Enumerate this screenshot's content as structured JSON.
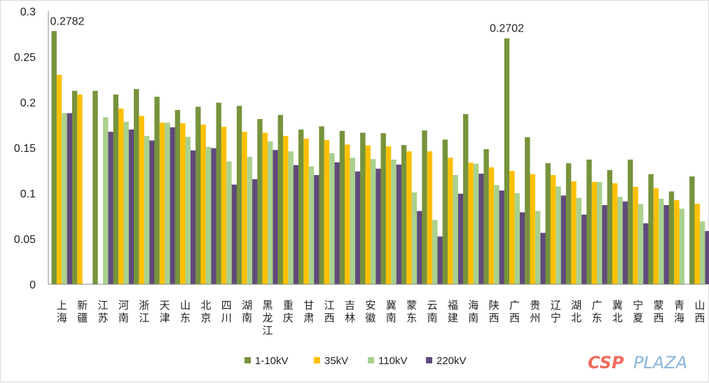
{
  "chart_data": {
    "type": "bar",
    "categories": [
      "上海",
      "新疆",
      "江苏",
      "河南",
      "浙江",
      "天津",
      "山东",
      "北京",
      "四川",
      "湖南",
      "黑龙江",
      "重庆",
      "甘肃",
      "江西",
      "吉林",
      "安徽",
      "冀南",
      "蒙东",
      "云南",
      "福建",
      "海南",
      "陕西",
      "广西",
      "贵州",
      "辽宁",
      "湖北",
      "广东",
      "冀北",
      "宁夏",
      "蒙西",
      "青海",
      "山西"
    ],
    "series": [
      {
        "name": "1-10kV",
        "color": "#77933c",
        "values": [
          0.2782,
          0.2125,
          0.2125,
          0.2085,
          0.2145,
          0.206,
          0.1915,
          0.195,
          0.1995,
          0.196,
          0.1815,
          0.186,
          0.17,
          0.1735,
          0.1685,
          0.1665,
          0.166,
          0.153,
          0.169,
          0.159,
          0.187,
          0.1485,
          0.2702,
          0.1615,
          0.133,
          0.133,
          0.137,
          0.1255,
          0.137,
          0.121,
          0.102,
          0.1185
        ]
      },
      {
        "name": "35kV",
        "color": "#ffc000",
        "values": [
          0.23,
          0.2085,
          null,
          0.193,
          0.185,
          0.1775,
          0.177,
          0.1755,
          0.173,
          0.1675,
          0.1665,
          0.163,
          0.16,
          0.1585,
          0.1535,
          0.1525,
          0.1515,
          0.146,
          0.146,
          0.139,
          0.1335,
          0.1285,
          0.1245,
          0.121,
          0.12,
          0.113,
          0.1125,
          0.111,
          0.107,
          0.1055,
          0.0925,
          0.0885
        ]
      },
      {
        "name": "110kV",
        "color": "#a9d18e",
        "values": [
          0.188,
          null,
          0.1835,
          0.1785,
          0.163,
          0.1775,
          0.162,
          0.151,
          0.135,
          0.14,
          0.157,
          0.146,
          0.1295,
          0.144,
          0.139,
          0.1375,
          0.137,
          0.101,
          0.0705,
          0.12,
          0.1325,
          0.109,
          0.1,
          0.0805,
          0.1075,
          0.095,
          0.1125,
          0.096,
          0.088,
          0.094,
          0.083,
          0.069
        ]
      },
      {
        "name": "220kV",
        "color": "#604a7b",
        "values": [
          0.188,
          null,
          0.1675,
          0.17,
          0.158,
          0.1725,
          0.147,
          0.1495,
          0.1095,
          0.1155,
          0.1475,
          0.131,
          0.12,
          0.134,
          0.124,
          0.127,
          0.1315,
          0.0805,
          0.0525,
          0.0995,
          0.1215,
          0.103,
          0.079,
          0.0565,
          0.0975,
          0.0765,
          0.087,
          0.091,
          0.067,
          0.087,
          null,
          0.0585
        ]
      }
    ],
    "annotations": [
      {
        "category": "上海",
        "series": "1-10kV",
        "text": "0.2782"
      },
      {
        "category": "广西",
        "series": "1-10kV",
        "text": "0.2702"
      }
    ],
    "yticks": [
      "0",
      "0.05",
      "0.1",
      "0.15",
      "0.2",
      "0.25",
      "0.3"
    ],
    "ylim": [
      0,
      0.3
    ],
    "title": "",
    "xlabel": "",
    "ylabel": "",
    "grid": false,
    "legend_position": "bottom"
  },
  "watermark": {
    "part1": "CSP",
    "part2": "PLAZA"
  }
}
